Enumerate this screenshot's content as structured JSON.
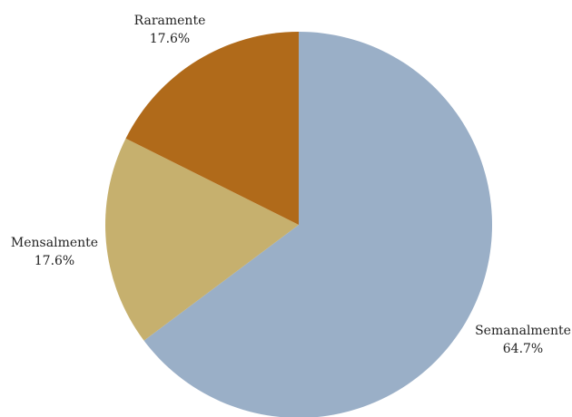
{
  "chart_data": {
    "type": "pie",
    "title": "",
    "slices": [
      {
        "label": "Semanalmente",
        "value": 64.7,
        "value_label": "64.7%",
        "color": "#9AAFC7"
      },
      {
        "label": "Mensalmente",
        "value": 17.6,
        "value_label": "17.6%",
        "color": "#C6B06E"
      },
      {
        "label": "Raramente",
        "value": 17.6,
        "value_label": "17.6%",
        "color": "#B06A1A"
      }
    ],
    "start": "top",
    "direction": "clockwise",
    "legend": "none"
  }
}
